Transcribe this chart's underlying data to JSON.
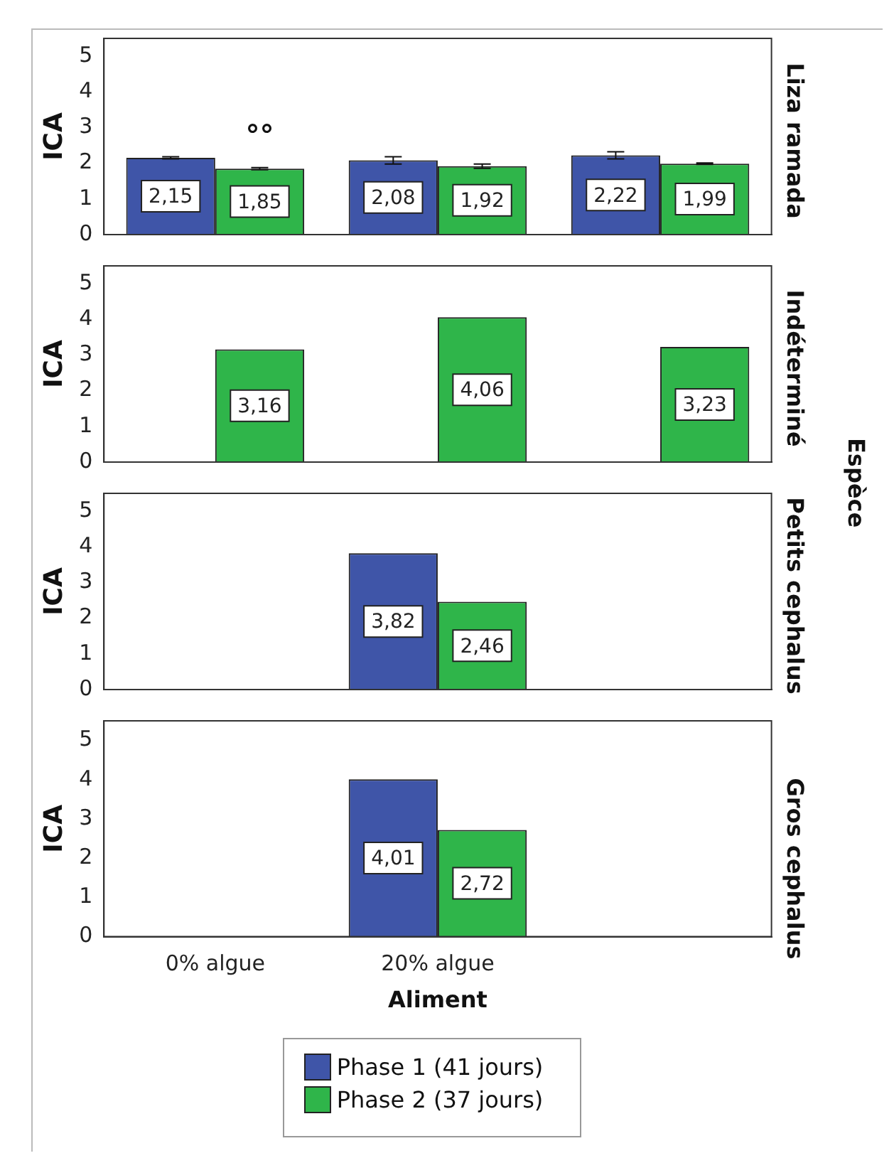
{
  "chart_data": [
    {
      "type": "bar",
      "title": "Liza ramada",
      "ylabel": "ICA",
      "categories": [
        "0% algue",
        "20% algue",
        null
      ],
      "ylim": [
        0,
        5.5
      ],
      "yticks": [
        0,
        1,
        2,
        3,
        4,
        5
      ],
      "tick_labels": "y",
      "annotations": [
        {
          "text": "°°",
          "x": "0% algue",
          "y": 1.85
        },
        "Espèce"
      ],
      "series": [
        {
          "color": "#3f55a8",
          "values": [
            2.15,
            2.08,
            2.22
          ],
          "errors": [
            0.03,
            0.1,
            0.1
          ],
          "value_labels": [
            "2,15",
            "2,08",
            "2,22"
          ]
        },
        {
          "color": "#2fb54a",
          "values": [
            1.85,
            1.92,
            1.99
          ],
          "errors": [
            0.03,
            0.06,
            0.02
          ],
          "value_labels": [
            "1,85",
            "1,92",
            "1,99"
          ]
        }
      ]
    },
    {
      "type": "bar",
      "title": "Indéterminé",
      "ylabel": "ICA",
      "categories": [
        "0% algue",
        "20% algue",
        null
      ],
      "ylim": [
        0,
        5.5
      ],
      "yticks": [
        0,
        1,
        2,
        3,
        4,
        5
      ],
      "tick_labels": "y",
      "series": [
        {
          "color": "#3f55a8",
          "values": [
            0,
            0,
            0
          ],
          "value_labels": [
            null,
            null,
            null
          ]
        },
        {
          "color": "#2fb54a",
          "values": [
            3.16,
            4.06,
            3.23
          ],
          "value_labels": [
            "3,16",
            "4,06",
            "3,23"
          ]
        }
      ]
    },
    {
      "type": "bar",
      "title": "Petits cephalus",
      "ylabel": "ICA",
      "categories": [
        "0% algue",
        "20% algue",
        null
      ],
      "ylim": [
        0,
        5.5
      ],
      "yticks": [
        0,
        1,
        2,
        3,
        4,
        5
      ],
      "tick_labels": "y",
      "series": [
        {
          "color": "#3f55a8",
          "values": [
            null,
            3.82,
            null
          ],
          "value_labels": [
            null,
            "3,82",
            null
          ]
        },
        {
          "color": "#2fb54a",
          "values": [
            null,
            2.46,
            null
          ],
          "value_labels": [
            null,
            "2,46",
            null
          ]
        }
      ]
    },
    {
      "type": "bar",
      "title": "Gros cephalus",
      "ylabel": "ICA",
      "xlabel": "Aliment",
      "categories": [
        "0% algue",
        "20% algue",
        null
      ],
      "ylim": [
        0,
        5.5
      ],
      "yticks": [
        0,
        1,
        2,
        3,
        4,
        5
      ],
      "legend": "bottom",
      "series": [
        {
          "name": "Phase 1 (41 jours)",
          "color": "#3f55a8",
          "values": [
            null,
            4.01,
            null
          ],
          "value_labels": [
            null,
            "4,01",
            null
          ]
        },
        {
          "name": "Phase 2 (37 jours)",
          "color": "#2fb54a",
          "values": [
            null,
            2.72,
            null
          ],
          "value_labels": [
            null,
            "2,72",
            null
          ]
        }
      ]
    }
  ]
}
